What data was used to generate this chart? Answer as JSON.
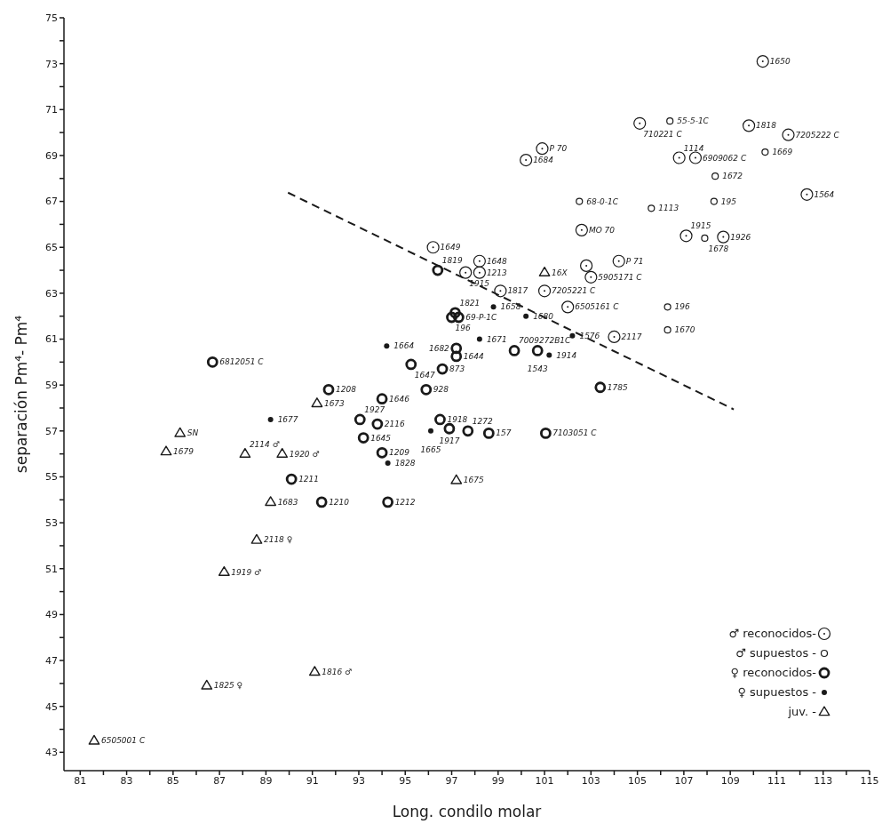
{
  "chart_data": {
    "type": "scatter",
    "xlabel": "Long.   condilo   molar",
    "ylabel": "separación   Pm⁴- Pm⁴",
    "xlim": [
      80.3,
      115
    ],
    "ylim": [
      42.2,
      75
    ],
    "xticks": [
      81,
      {
        "value": 82,
        "label": null
      },
      83,
      {
        "value": 84,
        "label": null
      },
      85,
      {
        "value": 86,
        "label": null
      },
      87,
      {
        "value": 88,
        "label": null
      },
      89,
      {
        "value": 90,
        "label": null
      },
      91,
      {
        "value": 92,
        "label": null
      },
      93,
      {
        "value": 94,
        "label": null
      },
      95,
      {
        "value": 96,
        "label": null
      },
      97,
      {
        "value": 98,
        "label": null
      },
      99,
      {
        "value": 100,
        "label": null
      },
      101,
      {
        "value": 102,
        "label": null
      },
      103,
      {
        "value": 104,
        "label": null
      },
      105,
      {
        "value": 106,
        "label": null
      },
      107,
      {
        "value": 108,
        "label": null
      },
      109,
      {
        "value": 110,
        "label": null
      },
      111,
      {
        "value": 112,
        "label": null
      },
      113,
      {
        "value": 114,
        "label": null
      },
      115
    ],
    "yticks": [
      43,
      {
        "value": 44,
        "label": null
      },
      45,
      {
        "value": 46,
        "label": null
      },
      47,
      {
        "value": 48,
        "label": null
      },
      49,
      {
        "value": 50,
        "label": null
      },
      51,
      {
        "value": 52,
        "label": null
      },
      53,
      {
        "value": 54,
        "label": null
      },
      55,
      {
        "value": 56,
        "label": null
      },
      57,
      {
        "value": 58,
        "label": null
      },
      59,
      {
        "value": 60,
        "label": null
      },
      61,
      {
        "value": 62,
        "label": null
      },
      63,
      {
        "value": 64,
        "label": null
      },
      65,
      {
        "value": 66,
        "label": null
      },
      67,
      {
        "value": 68,
        "label": null
      },
      69,
      {
        "value": 70,
        "label": null
      },
      71,
      {
        "value": 72,
        "label": null
      },
      73,
      {
        "value": 74,
        "label": null
      },
      75
    ],
    "legend": "bottom right",
    "series": [
      {
        "name": "♂ reconocidos-",
        "color": "#1a1a1a",
        "marker": "circle",
        "x": [
          110.4,
          105.1,
          109.8,
          111.5,
          100.9,
          100.2,
          106.8,
          107.5,
          112.3,
          102.6,
          107.1,
          108.7,
          104.2,
          102.8,
          103.0,
          101.0,
          102.0,
          104.0,
          99.1,
          98.2,
          98.2,
          97.6,
          96.2
        ],
        "values": [
          73.1,
          70.4,
          70.3,
          69.9,
          69.3,
          68.8,
          68.9,
          68.9,
          67.3,
          65.75,
          65.5,
          65.45,
          64.4,
          64.2,
          63.7,
          63.1,
          62.4,
          61.1,
          63.1,
          64.4,
          63.9,
          63.9,
          65.0
        ]
      },
      {
        "name": "♂ supuestos -",
        "color": "#1a1a1a",
        "marker": "circle",
        "x": [
          106.4,
          110.5,
          108.35,
          102.5,
          105.6,
          108.3,
          107.9,
          106.3,
          106.3
        ],
        "values": [
          70.5,
          69.15,
          68.1,
          67.0,
          66.7,
          67.0,
          65.4,
          62.4,
          61.4
        ]
      },
      {
        "name": "♀ reconocidos-",
        "color": "#1a1a1a",
        "marker": "circle",
        "x": [
          96.4,
          97.15,
          97.0,
          97.3,
          97.2,
          97.2,
          95.25,
          96.6,
          95.9,
          91.7,
          94.0,
          93.05,
          93.8,
          93.2,
          94.0,
          96.5,
          96.9,
          97.7,
          98.6,
          101.05,
          90.1,
          91.4,
          94.25,
          86.7,
          99.7,
          100.7,
          103.4
        ],
        "values": [
          64.0,
          62.15,
          61.95,
          61.95,
          60.6,
          60.25,
          59.9,
          59.7,
          58.8,
          58.8,
          58.4,
          57.5,
          57.3,
          56.7,
          56.05,
          57.5,
          57.1,
          57.0,
          56.9,
          56.9,
          54.9,
          53.9,
          53.9,
          60.0,
          60.5,
          60.5,
          58.9
        ]
      },
      {
        "name": "♀ supuestos -",
        "color": "#1a1a1a",
        "marker": "circle",
        "x": [
          94.2,
          98.8,
          100.2,
          98.2,
          102.2,
          101.2,
          89.2,
          96.1,
          94.25
        ],
        "values": [
          60.7,
          62.4,
          62.0,
          61.0,
          61.15,
          60.3,
          57.5,
          57.0,
          55.6
        ]
      },
      {
        "name": "juv.         -",
        "color": "#1a1a1a",
        "marker": "triangle",
        "x": [
          91.2,
          85.3,
          84.7,
          88.1,
          89.7,
          89.2,
          88.6,
          87.2,
          91.1,
          86.45,
          81.6,
          97.2,
          101.0
        ],
        "values": [
          58.2,
          56.9,
          56.1,
          56.0,
          56.0,
          53.9,
          52.25,
          50.85,
          46.5,
          45.9,
          43.5,
          54.85,
          63.9
        ]
      },
      {
        "type": "line",
        "color": "#1a1a1a",
        "line_style": "dashed",
        "marker": "none",
        "x": [
          89.95,
          109.15
        ],
        "values": [
          67.38,
          57.94
        ]
      }
    ],
    "annotations": [
      {
        "text": "1650",
        "x": 110.4,
        "y": 73.1
      },
      {
        "text": "710221 C",
        "x": 105.1,
        "y": 70.4
      },
      {
        "text": "1818",
        "x": 109.8,
        "y": 70.3
      },
      {
        "text": "7205222 C",
        "x": 111.5,
        "y": 69.9
      },
      {
        "text": "P 70",
        "x": 100.9,
        "y": 69.3
      },
      {
        "text": "1684",
        "x": 100.2,
        "y": 68.8
      },
      {
        "text": "1114",
        "x": 106.8,
        "y": 68.9
      },
      {
        "text": "6909062 C",
        "x": 107.5,
        "y": 68.9
      },
      {
        "text": "1564",
        "x": 112.3,
        "y": 67.3
      },
      {
        "text": "MO 70",
        "x": 102.6,
        "y": 65.75
      },
      {
        "text": "1915",
        "x": 107.1,
        "y": 65.5
      },
      {
        "text": "1926",
        "x": 108.7,
        "y": 65.45
      },
      {
        "text": "P 71",
        "x": 104.2,
        "y": 64.4
      },
      {
        "text": "5905171 C",
        "x": 103.0,
        "y": 63.7
      },
      {
        "text": "7205221 C",
        "x": 101.0,
        "y": 63.1
      },
      {
        "text": "6505161 C",
        "x": 102.0,
        "y": 62.4
      },
      {
        "text": "2117",
        "x": 104.0,
        "y": 61.1
      },
      {
        "text": "1817",
        "x": 99.1,
        "y": 63.1
      },
      {
        "text": "1648",
        "x": 98.2,
        "y": 64.4
      },
      {
        "text": "1213",
        "x": 98.2,
        "y": 63.9
      },
      {
        "text": "1915",
        "x": 97.6,
        "y": 63.9
      },
      {
        "text": "1649",
        "x": 96.2,
        "y": 65.0
      },
      {
        "text": "55-5-1C",
        "x": 106.4,
        "y": 70.5
      },
      {
        "text": "1669",
        "x": 110.5,
        "y": 69.15
      },
      {
        "text": "1672",
        "x": 108.35,
        "y": 68.1
      },
      {
        "text": "68-0-1C",
        "x": 102.5,
        "y": 67.0
      },
      {
        "text": "1113",
        "x": 105.6,
        "y": 66.7
      },
      {
        "text": "195",
        "x": 108.3,
        "y": 67.0
      },
      {
        "text": "1678",
        "x": 107.9,
        "y": 65.4
      },
      {
        "text": "196",
        "x": 106.3,
        "y": 62.4
      },
      {
        "text": "1670",
        "x": 106.3,
        "y": 61.4
      },
      {
        "text": "1819",
        "x": 96.4,
        "y": 64.0
      },
      {
        "text": "1821",
        "x": 97.15,
        "y": 62.15
      },
      {
        "text": "196",
        "x": 97.0,
        "y": 61.95
      },
      {
        "text": "69-P-1C",
        "x": 97.3,
        "y": 61.95
      },
      {
        "text": "1682",
        "x": 97.2,
        "y": 60.6
      },
      {
        "text": "1644",
        "x": 97.2,
        "y": 60.25
      },
      {
        "text": "1647",
        "x": 95.25,
        "y": 59.9
      },
      {
        "text": "873",
        "x": 96.6,
        "y": 59.7
      },
      {
        "text": "928",
        "x": 95.9,
        "y": 58.8
      },
      {
        "text": "1208",
        "x": 91.7,
        "y": 58.8
      },
      {
        "text": "1646",
        "x": 94.0,
        "y": 58.4
      },
      {
        "text": "1927",
        "x": 93.05,
        "y": 57.5
      },
      {
        "text": "2116",
        "x": 93.8,
        "y": 57.3
      },
      {
        "text": "1645",
        "x": 93.2,
        "y": 56.7
      },
      {
        "text": "1209",
        "x": 94.0,
        "y": 56.05
      },
      {
        "text": "1918",
        "x": 96.5,
        "y": 57.5
      },
      {
        "text": "1917",
        "x": 96.9,
        "y": 57.1
      },
      {
        "text": "1272",
        "x": 97.7,
        "y": 57.0
      },
      {
        "text": "157",
        "x": 98.6,
        "y": 56.9
      },
      {
        "text": "7103051 C",
        "x": 101.05,
        "y": 56.9
      },
      {
        "text": "1211",
        "x": 90.1,
        "y": 54.9
      },
      {
        "text": "1210",
        "x": 91.4,
        "y": 53.9
      },
      {
        "text": "1212",
        "x": 94.25,
        "y": 53.9
      },
      {
        "text": "6812051 C",
        "x": 86.7,
        "y": 60.0
      },
      {
        "text": "7009272B1C",
        "x": 99.7,
        "y": 60.5
      },
      {
        "text": "1543",
        "x": 100.7,
        "y": 60.5
      },
      {
        "text": "1785",
        "x": 103.4,
        "y": 58.9
      },
      {
        "text": "1664",
        "x": 94.2,
        "y": 60.7
      },
      {
        "text": "1658",
        "x": 98.8,
        "y": 62.4
      },
      {
        "text": "1680",
        "x": 100.2,
        "y": 62.0
      },
      {
        "text": "1671",
        "x": 98.2,
        "y": 61.0
      },
      {
        "text": "1576",
        "x": 102.2,
        "y": 61.15
      },
      {
        "text": "1914",
        "x": 101.2,
        "y": 60.3
      },
      {
        "text": "1677",
        "x": 89.2,
        "y": 57.5
      },
      {
        "text": "1665",
        "x": 96.1,
        "y": 57.0
      },
      {
        "text": "1828",
        "x": 94.25,
        "y": 55.6
      },
      {
        "text": "1673",
        "x": 91.2,
        "y": 58.2
      },
      {
        "text": "SN",
        "x": 85.3,
        "y": 56.9
      },
      {
        "text": "1679",
        "x": 84.7,
        "y": 56.1
      },
      {
        "text": "2114 ♂",
        "x": 88.1,
        "y": 56.0
      },
      {
        "text": "1920 ♂",
        "x": 89.7,
        "y": 56.0
      },
      {
        "text": "1683",
        "x": 89.2,
        "y": 53.9
      },
      {
        "text": "2118 ♀",
        "x": 88.6,
        "y": 52.25
      },
      {
        "text": "1919 ♂",
        "x": 87.2,
        "y": 50.85
      },
      {
        "text": "1816 ♂",
        "x": 91.1,
        "y": 46.5
      },
      {
        "text": "1825 ♀",
        "x": 86.45,
        "y": 45.9
      },
      {
        "text": "6505001 C",
        "x": 81.6,
        "y": 43.5
      },
      {
        "text": "1675",
        "x": 97.2,
        "y": 54.85
      },
      {
        "text": "16X",
        "x": 101.0,
        "y": 63.9
      }
    ]
  }
}
